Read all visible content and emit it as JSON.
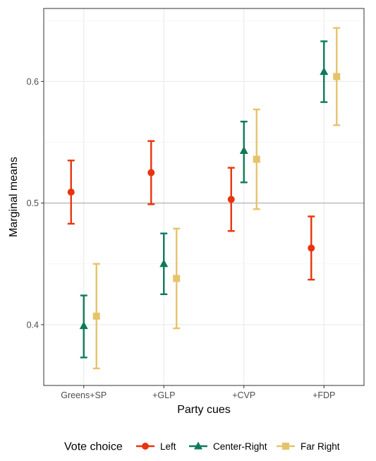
{
  "chart_data": {
    "type": "scatter",
    "subtype": "point-range",
    "xlabel": "Party cues",
    "ylabel": "Marginal means",
    "categories": [
      "Greens+SP",
      "+GLP",
      "+CVP",
      "+FDP"
    ],
    "ylim": [
      0.35,
      0.66
    ],
    "yticks": [
      0.4,
      0.5,
      0.6
    ],
    "ytick_labels": [
      "0.4",
      "0.5",
      "0.6"
    ],
    "reference_line": 0.5,
    "grid": true,
    "legend": {
      "title": "Vote choice",
      "position": "bottom"
    },
    "series": [
      {
        "name": "Left",
        "color": "#e8340e",
        "marker": "circle",
        "values": [
          0.509,
          0.525,
          0.503,
          0.463
        ],
        "lower": [
          0.483,
          0.499,
          0.477,
          0.437
        ],
        "upper": [
          0.535,
          0.551,
          0.529,
          0.489
        ]
      },
      {
        "name": "Center-Right",
        "color": "#0e7a5a",
        "marker": "triangle",
        "values": [
          0.399,
          0.45,
          0.543,
          0.608
        ],
        "lower": [
          0.373,
          0.425,
          0.517,
          0.583
        ],
        "upper": [
          0.424,
          0.475,
          0.567,
          0.633
        ]
      },
      {
        "name": "Far Right",
        "color": "#e6c36a",
        "marker": "square",
        "values": [
          0.407,
          0.438,
          0.536,
          0.604
        ],
        "lower": [
          0.364,
          0.397,
          0.495,
          0.564
        ],
        "upper": [
          0.45,
          0.479,
          0.577,
          0.644
        ]
      }
    ]
  }
}
